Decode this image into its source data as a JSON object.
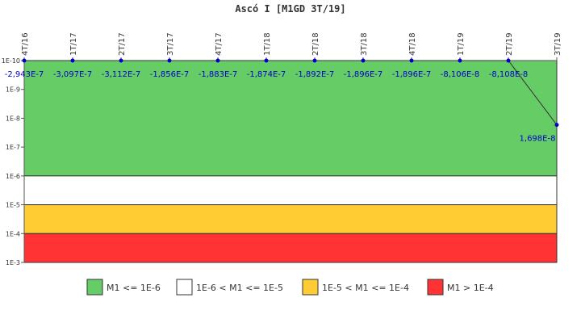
{
  "chart_data": {
    "type": "line",
    "title": "Ascó I [M1GD 3T/19]",
    "xlabel": "",
    "ylabel": "",
    "y_scale": "log",
    "y_inverted": true,
    "ylim": [
      1e-10,
      0.001
    ],
    "y_ticks": [
      "1E-10",
      "1E-9",
      "1E-8",
      "1E-7",
      "1E-6",
      "1E-5",
      "1E-4",
      "1E-3"
    ],
    "categories": [
      "4T/16",
      "1T/17",
      "2T/17",
      "3T/17",
      "4T/17",
      "1T/18",
      "2T/18",
      "3T/18",
      "4T/18",
      "1T/19",
      "2T/19",
      "3T/19"
    ],
    "series": [
      {
        "values": [
          -2.943e-07,
          -3.097e-07,
          -3.112e-07,
          -1.856e-07,
          -1.883e-07,
          -1.874e-07,
          -1.892e-07,
          -1.896e-07,
          -1.896e-07,
          -8.106e-08,
          -8.108e-08,
          1.698e-08
        ],
        "labels": [
          "-2,943E-7",
          "-3,097E-7",
          "-3,112E-7",
          "-1,856E-7",
          "-1,883E-7",
          "-1,874E-7",
          "-1,892E-7",
          "-1,896E-7",
          "-1,896E-7",
          "-8,106E-8",
          "-8,108E-8",
          "1,698E-8"
        ],
        "color": "#0000cc"
      }
    ],
    "bands": [
      {
        "label": "M1 <= 1E-6",
        "from": 1e-10,
        "to": 1e-06,
        "color": "#66cc66"
      },
      {
        "label": "1E-6 < M1 <= 1E-5",
        "from": 1e-06,
        "to": 1e-05,
        "color": "#ffffff"
      },
      {
        "label": "1E-5 < M1 <= 1E-4",
        "from": 1e-05,
        "to": 0.0001,
        "color": "#ffcc33"
      },
      {
        "label": "M1 > 1E-4",
        "from": 0.0001,
        "to": 0.001,
        "color": "#ff3333"
      }
    ],
    "grid": false,
    "legend_position": "bottom"
  }
}
